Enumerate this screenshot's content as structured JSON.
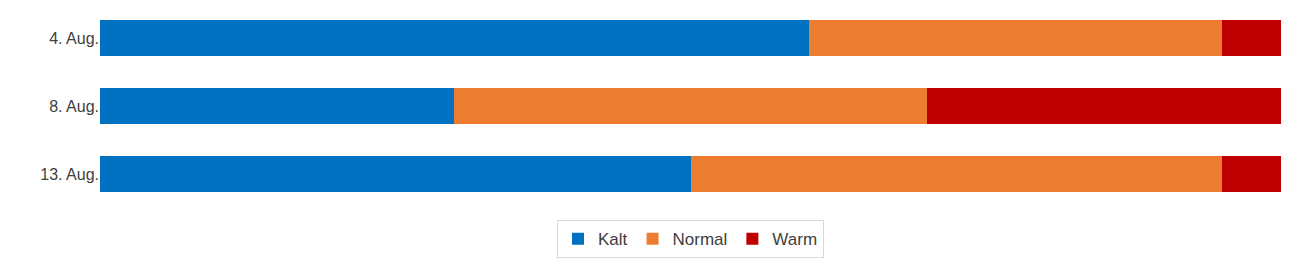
{
  "chart_data": {
    "type": "bar",
    "orientation": "horizontal",
    "stacked": true,
    "categories": [
      "4. Aug.",
      "8. Aug.",
      "13. Aug."
    ],
    "series": [
      {
        "name": "Kalt",
        "color": "#0070c0",
        "values": [
          60,
          30,
          50
        ]
      },
      {
        "name": "Normal",
        "color": "#ed7d31",
        "values": [
          35,
          40,
          45
        ]
      },
      {
        "name": "Warm",
        "color": "#c00000",
        "values": [
          5,
          30,
          5
        ]
      }
    ],
    "xlim": [
      0,
      100
    ],
    "tick_labels": "y",
    "grid": false,
    "legend": "bottom"
  }
}
